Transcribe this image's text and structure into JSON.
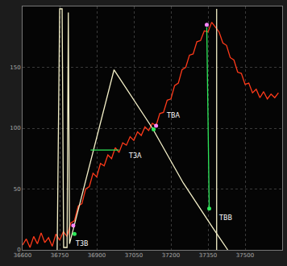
{
  "chart_data": {
    "type": "line",
    "xlim": [
      36600,
      37650
    ],
    "xticks": [
      36600,
      36750,
      36900,
      37050,
      37200,
      37350,
      37500
    ],
    "ylim": [
      0,
      200
    ],
    "yticks": [
      0,
      50,
      100,
      150
    ],
    "grid": true,
    "series": [
      {
        "color": "#ff3a1a",
        "line_style": "solid",
        "marker": "none",
        "x": [
          36600,
          36615,
          36630,
          36645,
          36660,
          36675,
          36690,
          36705,
          36720,
          36735,
          36750,
          36765,
          36780,
          36795,
          36810,
          36825,
          36840,
          36855,
          36870,
          36885,
          36900,
          36915,
          36930,
          36945,
          36960,
          36975,
          36990,
          37005,
          37020,
          37035,
          37050,
          37065,
          37080,
          37095,
          37110,
          37125,
          37140,
          37155,
          37170,
          37185,
          37200,
          37215,
          37230,
          37245,
          37260,
          37275,
          37290,
          37305,
          37320,
          37335,
          37350,
          37365,
          37380,
          37395,
          37410,
          37425,
          37440,
          37455,
          37470,
          37485,
          37500,
          37515,
          37530,
          37545,
          37560,
          37575,
          37590,
          37605,
          37620,
          37635
        ],
        "values": [
          4,
          9,
          2,
          11,
          5,
          14,
          6,
          10,
          3,
          13,
          8,
          15,
          11,
          22,
          24,
          36,
          38,
          50,
          52,
          63,
          60,
          71,
          69,
          78,
          75,
          84,
          80,
          88,
          86,
          93,
          90,
          97,
          94,
          101,
          98,
          104,
          102,
          112,
          113,
          123,
          124,
          135,
          137,
          148,
          150,
          160,
          161,
          171,
          172,
          180,
          179,
          187,
          183,
          179,
          170,
          168,
          158,
          156,
          146,
          145,
          136,
          137,
          129,
          132,
          125,
          130,
          124,
          128,
          125,
          129
        ]
      },
      {
        "color": "#f4f0c8",
        "line_style": "solid",
        "marker": "none",
        "x": [
          36740,
          36750,
          36760,
          36766,
          36780,
          36785,
          36790,
          36970,
          37125,
          37250,
          37370,
          37430,
          37435,
          37385,
          37385
        ],
        "values": [
          0,
          198,
          198,
          2,
          2,
          195,
          5,
          148,
          100,
          55,
          18,
          0,
          null,
          0,
          198
        ]
      },
      {
        "color": "#2ee85a",
        "line_style": "solid",
        "marker": "none",
        "x": [
          36875,
          36990,
          37000,
          37355,
          37345
        ],
        "values": [
          82,
          82,
          null,
          34,
          183
        ]
      },
      {
        "color": "#2ee85a",
        "line_style": "none",
        "marker": "circle",
        "x": [
          36810,
          37130,
          37355
        ],
        "values": [
          13,
          99,
          34
        ]
      },
      {
        "color": "#ff88ff",
        "line_style": "none",
        "marker": "circle",
        "x": [
          36805,
          37140,
          37345
        ],
        "values": [
          20,
          102,
          185
        ]
      }
    ],
    "annotations": [
      {
        "text": "T3B",
        "x": 36805,
        "y": 5
      },
      {
        "text": "T3A",
        "x": 37020,
        "y": 77
      },
      {
        "text": "TBA",
        "x": 37175,
        "y": 110
      },
      {
        "text": "TBB",
        "x": 37385,
        "y": 26
      }
    ]
  }
}
